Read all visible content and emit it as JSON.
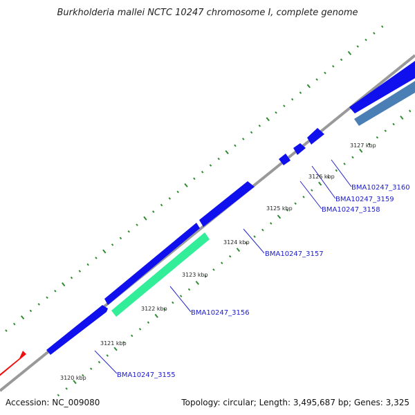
{
  "title": "Burkholderia mallei NCTC 10247 chromosome I, complete genome",
  "footer": {
    "accession": "Accession: NC_009080",
    "summary": "Topology: circular; Length: 3,495,687 bp; Genes: 3,325"
  },
  "colors": {
    "backbone": "#8c8c8c",
    "tick": "#2e8b2e",
    "cds_forward": "#1010ee",
    "cds_reverse_teal": "#33ee99",
    "cds_reverse_steel": "#4a7fb5",
    "cds_other": "#ee1111",
    "label": "#1a1acc",
    "leader": "#2222cc"
  },
  "kbp_labels": [
    "3120 kbp",
    "3121 kbp",
    "3122 kbp",
    "3123 kbp",
    "3124 kbp",
    "3125 kbp",
    "3126 kbp",
    "3127 kbp"
  ],
  "gene_labels": [
    "BMA10247_3155",
    "BMA10247_3156",
    "BMA10247_3157",
    "BMA10247_3158",
    "BMA10247_3159",
    "BMA10247_3160"
  ]
}
